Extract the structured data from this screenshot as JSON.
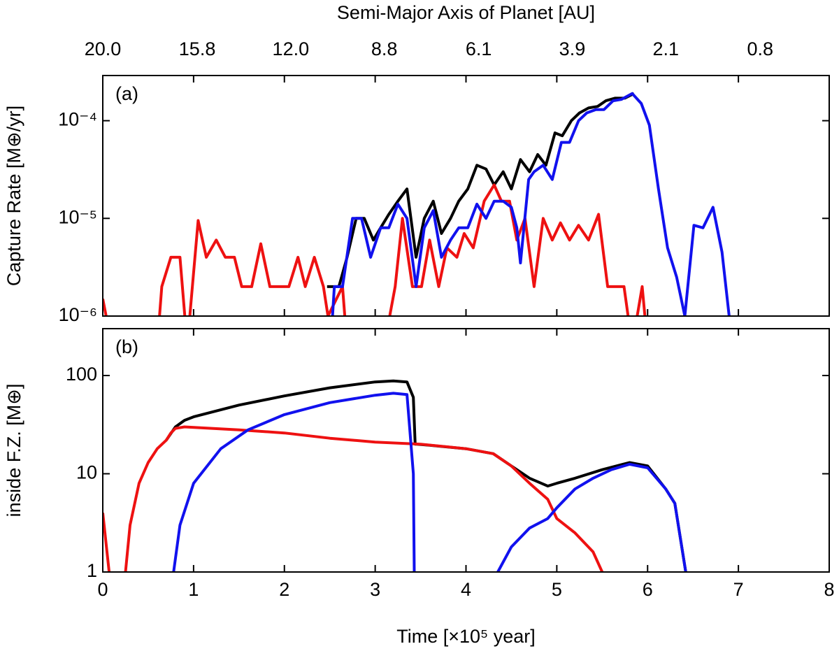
{
  "chart_data": [
    {
      "type": "line",
      "panel_label": "(a)",
      "ylabel": "Capture Rate [M⊕/yr]",
      "log_y": true,
      "xlim": [
        0,
        8
      ],
      "ylim": [
        1e-06,
        0.00029
      ],
      "yticks": [
        {
          "value": 1e-06,
          "label": "10⁻⁶"
        },
        {
          "value": 1e-05,
          "label": "10⁻⁵"
        },
        {
          "value": 0.0001,
          "label": "10⁻⁴"
        }
      ],
      "x2label": "Semi-Major Axis of Planet [AU]",
      "x2lim": [
        0,
        8
      ],
      "x2ticks": [
        {
          "value": 0,
          "label": "20.0"
        },
        {
          "value": 1.04,
          "label": "15.8"
        },
        {
          "value": 2.07,
          "label": "12.0"
        },
        {
          "value": 3.1,
          "label": "8.8"
        },
        {
          "value": 4.14,
          "label": "6.1"
        },
        {
          "value": 5.17,
          "label": "3.9"
        },
        {
          "value": 6.2,
          "label": "2.1"
        },
        {
          "value": 7.24,
          "label": "0.8"
        }
      ],
      "series": [
        {
          "color": "#000000",
          "x": [
            2.47,
            2.6,
            2.69,
            2.79,
            2.88,
            2.98,
            3.06,
            3.15,
            3.25,
            3.35,
            3.45,
            3.54,
            3.64,
            3.73,
            3.83,
            3.92,
            4.02,
            4.12,
            4.22,
            4.31,
            4.41,
            4.5,
            4.6,
            4.7,
            4.79,
            4.88,
            4.98,
            5.06,
            5.16,
            5.25,
            5.35,
            5.45,
            5.54,
            5.64,
            5.75,
            5.85
          ],
          "values": [
            2e-06,
            2e-06,
            4e-06,
            1e-05,
            1e-05,
            6e-06,
            8e-06,
            1.1e-05,
            1.5e-05,
            2e-05,
            4e-06,
            1e-05,
            1.5e-05,
            7e-06,
            1e-05,
            1.5e-05,
            2e-05,
            3.5e-05,
            3.2e-05,
            2.2e-05,
            3e-05,
            2e-05,
            4e-05,
            3e-05,
            4.5e-05,
            3.5e-05,
            7.5e-05,
            7e-05,
            0.0001,
            0.00012,
            0.000135,
            0.00014,
            0.00016,
            0.00017,
            0.00017,
            0.00019
          ]
        },
        {
          "color": "#ee1111",
          "x": [
            0,
            0.1,
            0.6,
            0.65,
            0.75,
            0.85,
            0.93,
            1.05,
            1.14,
            1.25,
            1.35,
            1.45,
            1.53,
            1.64,
            1.74,
            1.84,
            1.95,
            2.05,
            2.15,
            2.23,
            2.33,
            2.43,
            2.48,
            2.64,
            2.69,
            3.1,
            3.22,
            3.3,
            3.41,
            3.51,
            3.6,
            3.7,
            3.79,
            3.9,
            3.98,
            4.08,
            4.2,
            4.31,
            4.39,
            4.48,
            4.56,
            4.65,
            4.75,
            4.85,
            4.95,
            5.04,
            5.14,
            5.24,
            5.35,
            5.46,
            5.56,
            5.64,
            5.74,
            5.83,
            5.94,
            6.0
          ],
          "values": [
            1.5e-06,
            5e-07,
            5e-07,
            2e-06,
            4e-06,
            4e-06,
            5e-07,
            9.5e-06,
            4e-06,
            6e-06,
            4e-06,
            4e-06,
            2e-06,
            2e-06,
            5.5e-06,
            2e-06,
            2e-06,
            2e-06,
            4e-06,
            2e-06,
            4e-06,
            2e-06,
            1e-06,
            2e-06,
            5e-07,
            5e-07,
            2e-06,
            1e-05,
            2e-06,
            2e-06,
            6e-06,
            2e-06,
            5e-06,
            4e-06,
            7e-06,
            5e-06,
            1.5e-05,
            2.2e-05,
            1.5e-05,
            1.5e-05,
            6e-06,
            1e-05,
            2e-06,
            1e-05,
            6e-06,
            9e-06,
            6e-06,
            8.5e-06,
            6e-06,
            1.1e-05,
            2e-06,
            2e-06,
            2e-06,
            5e-07,
            2e-06,
            5e-07
          ]
        },
        {
          "color": "#1111ee",
          "x": [
            2.51,
            2.55,
            2.64,
            2.75,
            2.85,
            2.95,
            3.06,
            3.15,
            3.25,
            3.35,
            3.45,
            3.54,
            3.64,
            3.73,
            3.83,
            3.92,
            4.02,
            4.12,
            4.22,
            4.31,
            4.41,
            4.5,
            4.56,
            4.6,
            4.69,
            4.75,
            4.85,
            4.95,
            5.05,
            5.14,
            5.24,
            5.33,
            5.43,
            5.52,
            5.62,
            5.71,
            5.83,
            5.93,
            6.02,
            6.12,
            6.22,
            6.32,
            6.41,
            6.51,
            6.61,
            6.72,
            6.82,
            6.91
          ],
          "values": [
            5e-07,
            2e-06,
            2e-06,
            1e-05,
            1e-05,
            4e-06,
            8e-06,
            8e-06,
            1.4e-05,
            1e-05,
            2e-06,
            8e-06,
            1.2e-05,
            4e-06,
            6e-06,
            8e-06,
            8e-06,
            1.4e-05,
            1e-05,
            1.5e-05,
            1.5e-05,
            1.3e-05,
            8e-06,
            3.5e-06,
            2.5e-05,
            3e-05,
            3.5e-05,
            2.5e-05,
            6e-05,
            6e-05,
            0.0001,
            0.00012,
            0.00013,
            0.00013,
            0.00016,
            0.000165,
            0.00019,
            0.00015,
            9e-05,
            2e-05,
            5e-06,
            2.5e-06,
            1e-06,
            8.5e-06,
            8e-06,
            1.3e-05,
            4.5e-06,
            8e-07
          ]
        }
      ]
    },
    {
      "type": "line",
      "panel_label": "(b)",
      "ylabel": "inside F.Z. [M⊕]",
      "xlabel": "Time [×10⁵ year]",
      "log_y": true,
      "xlim": [
        0,
        8
      ],
      "ylim": [
        1,
        300
      ],
      "xticks": [
        0,
        1,
        2,
        3,
        4,
        5,
        6,
        7,
        8
      ],
      "yticks": [
        1,
        10,
        100
      ],
      "series": [
        {
          "color": "#000000",
          "x": [
            0.7,
            0.8,
            0.9,
            1.0,
            1.5,
            2.0,
            2.5,
            3.0,
            3.2,
            3.35,
            3.42,
            3.44,
            3.46,
            3.6,
            4.0,
            4.3,
            4.5,
            4.7,
            4.9,
            5.0,
            5.2,
            5.5,
            5.8,
            6.0,
            6.2,
            6.3,
            6.42
          ],
          "values": [
            22,
            30,
            35,
            38,
            50,
            62,
            75,
            86,
            88,
            86,
            60,
            20,
            20,
            19.5,
            18,
            16,
            12,
            9,
            7.5,
            8,
            9,
            11,
            13,
            12,
            7,
            5,
            1
          ]
        },
        {
          "color": "#ee1111",
          "x": [
            0,
            0.07,
            null,
            0.25,
            0.3,
            0.4,
            0.5,
            0.6,
            0.7,
            0.75,
            0.8,
            0.9,
            1.5,
            2.0,
            2.5,
            3.0,
            3.5,
            4.0,
            4.3,
            4.5,
            4.7,
            4.9,
            5.0,
            5.2,
            5.4,
            5.5
          ],
          "values": [
            4,
            1,
            null,
            1,
            3,
            8,
            13,
            18,
            22,
            26,
            29,
            30,
            28,
            26,
            23,
            21,
            20,
            18,
            16,
            12,
            8,
            5.5,
            3.5,
            2.5,
            1.6,
            1
          ]
        },
        {
          "color": "#1111ee",
          "x": [
            0.78,
            0.85,
            1.0,
            1.3,
            1.6,
            2.0,
            2.5,
            3.0,
            3.2,
            3.35,
            3.42,
            3.43,
            null,
            4.35,
            4.5,
            4.7,
            4.9,
            5.0,
            5.2,
            5.4,
            5.6,
            5.8,
            6.0,
            6.2,
            6.3,
            6.42
          ],
          "values": [
            1,
            3,
            8,
            18,
            28,
            40,
            53,
            63,
            66,
            64,
            10,
            1,
            null,
            1,
            1.8,
            2.8,
            3.5,
            4.5,
            7,
            9,
            11,
            12.5,
            11.5,
            7,
            5,
            1
          ]
        }
      ]
    }
  ]
}
